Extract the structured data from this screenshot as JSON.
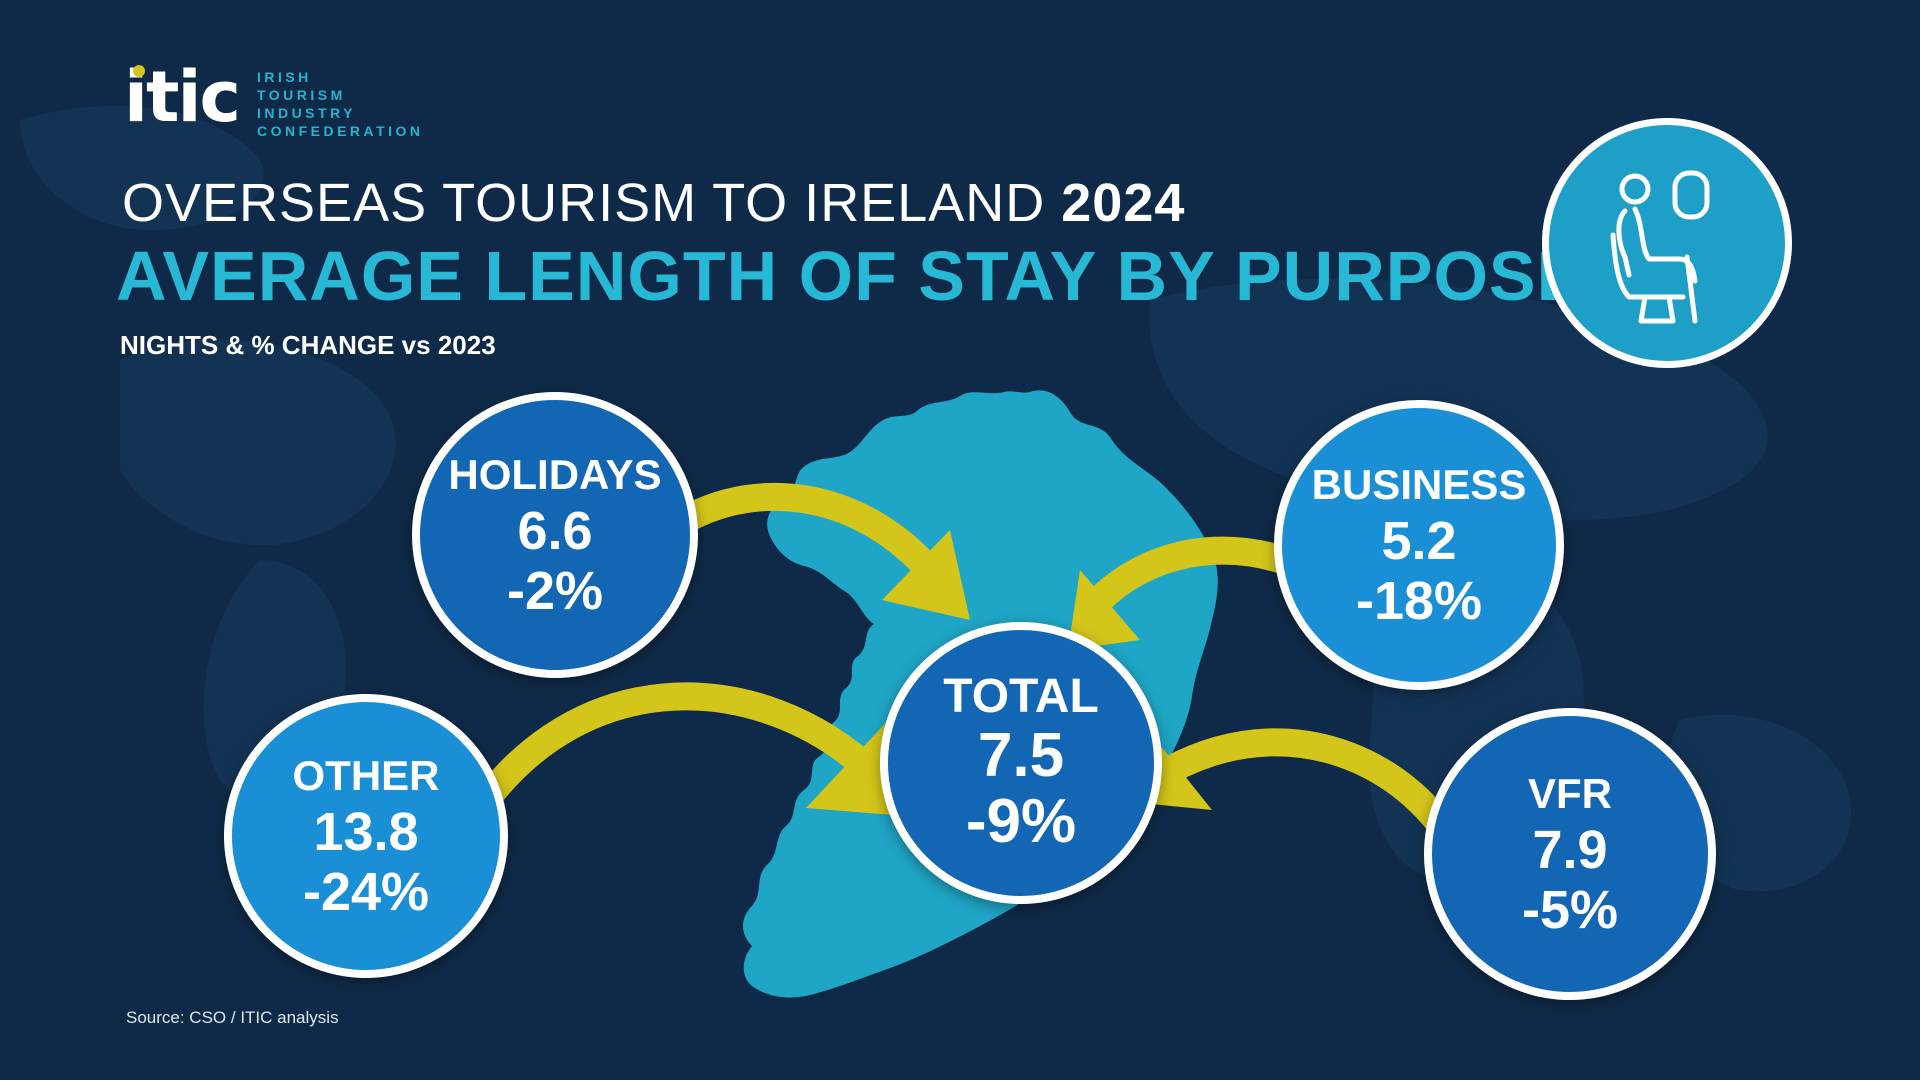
{
  "logo": {
    "mark": "itic",
    "lines": [
      "IRISH",
      "TOURISM",
      "INDUSTRY",
      "CONFEDERATION"
    ]
  },
  "title": {
    "line1": "OVERSEAS TOURISM TO IRELAND",
    "year": "2024",
    "line2": "AVERAGE LENGTH OF STAY BY PURPOSE"
  },
  "subtitle": "NIGHTS & % CHANGE vs 2023",
  "purposes": {
    "holidays": {
      "label": "HOLIDAYS",
      "value": "6.6",
      "change": "-2%"
    },
    "business": {
      "label": "BUSINESS",
      "value": "5.2",
      "change": "-18%"
    },
    "other": {
      "label": "OTHER",
      "value": "13.8",
      "change": "-24%"
    },
    "vfr": {
      "label": "VFR",
      "value": "7.9",
      "change": "-5%"
    },
    "total": {
      "label": "TOTAL",
      "value": "7.5",
      "change": "-9%"
    }
  },
  "source": "Source: CSO / ITIC analysis",
  "icons": {
    "badge": "passenger-seat-icon"
  },
  "colors": {
    "background": "#0f2a48",
    "map": "#1fa6c6",
    "arrow": "#d4c51a",
    "bubble_dark": "#1266b3",
    "bubble_light": "#1a8fd6",
    "title_accent": "#27b8d6"
  }
}
